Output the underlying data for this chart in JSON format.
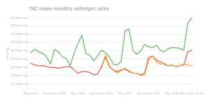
{
  "title": "TAC Index monthly airfreight rates",
  "ylabel": "Price/kg",
  "line_colors": [
    "#5cb85c",
    "#e8534a",
    "#f0a030"
  ],
  "x_labels": [
    "May 2015",
    "November 2015",
    "May 2016",
    "November 2016",
    "May 2017",
    "November 2017",
    "May 2018",
    "November 2018"
  ],
  "ylim": [
    1.0,
    5.8
  ],
  "yticks": [
    1.5,
    2.0,
    2.5,
    3.0,
    3.5,
    4.0,
    4.5,
    5.0,
    5.5
  ],
  "ytick_labels": [
    "$1.50per kg",
    "$2.00per kg",
    "$2.50per kg",
    "$3.00per kg",
    "$3.50per kg",
    "$4.00per kg",
    "$4.50per kg",
    "$5.00per kg",
    "$5.50per kg"
  ],
  "green": [
    3.35,
    3.55,
    3.4,
    3.3,
    3.1,
    2.65,
    3.55,
    3.4,
    3.1,
    3.0,
    2.55,
    3.3,
    3.9,
    4.4,
    3.3,
    3.2,
    2.85,
    3.15,
    3.5,
    3.35,
    3.1,
    2.65,
    2.6,
    2.8,
    4.65,
    4.8,
    3.5,
    3.25,
    3.45,
    3.85,
    3.7,
    3.65,
    3.8,
    3.5,
    3.4,
    3.6,
    3.65,
    3.65,
    3.6,
    3.5,
    5.15,
    5.45
  ],
  "red": [
    2.7,
    2.6,
    2.55,
    2.55,
    2.5,
    2.45,
    2.45,
    2.4,
    2.45,
    2.5,
    2.5,
    2.3,
    2.1,
    2.2,
    2.2,
    2.15,
    2.0,
    2.05,
    2.5,
    3.1,
    2.5,
    2.3,
    2.2,
    2.3,
    2.35,
    2.2,
    2.1,
    2.1,
    2.0,
    2.1,
    3.05,
    3.15,
    2.9,
    2.8,
    2.65,
    2.55,
    2.6,
    2.5,
    2.55,
    2.6,
    3.4,
    3.5
  ],
  "orange": [
    null,
    null,
    null,
    null,
    null,
    null,
    null,
    null,
    null,
    null,
    null,
    null,
    null,
    null,
    null,
    null,
    null,
    null,
    2.4,
    3.2,
    2.55,
    2.3,
    2.1,
    2.25,
    2.4,
    2.25,
    2.1,
    2.1,
    1.95,
    2.0,
    2.9,
    3.15,
    2.8,
    2.65,
    2.7,
    2.55,
    2.6,
    2.5,
    2.55,
    2.65,
    2.6,
    2.55
  ],
  "background_color": "#ffffff",
  "grid_color": "#e5e5e5",
  "x_tick_positions": [
    0,
    6,
    12,
    18,
    24,
    30,
    36,
    41
  ],
  "title_fontsize": 4.8,
  "tick_fontsize": 3.0,
  "ylabel_fontsize": 3.2,
  "linewidth": 0.85
}
